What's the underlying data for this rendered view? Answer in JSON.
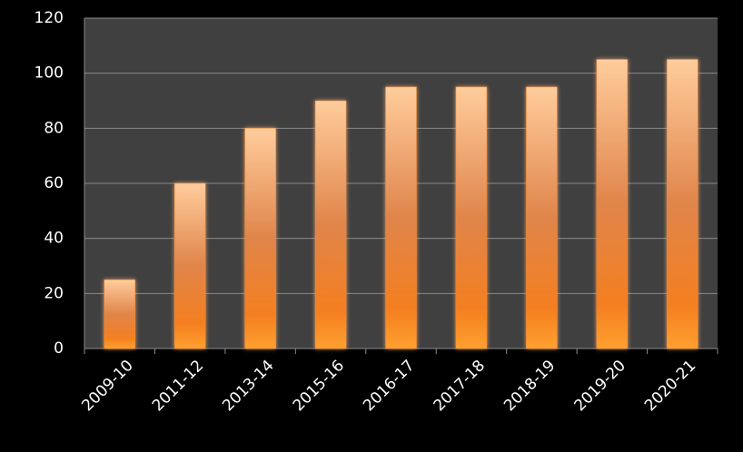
{
  "chart_data": {
    "type": "bar",
    "categories": [
      "2009-10",
      "2011-12",
      "2013-14",
      "2015-16",
      "2016-17",
      "2017-18",
      "2018-19",
      "2019-20",
      "2020-21"
    ],
    "values": [
      25,
      60,
      80,
      90,
      95,
      95,
      95,
      105,
      105
    ],
    "color": "#f28a30",
    "ylim": [
      0,
      120
    ],
    "yticks": [
      0,
      20,
      40,
      60,
      80,
      100,
      120
    ],
    "grid": true
  }
}
